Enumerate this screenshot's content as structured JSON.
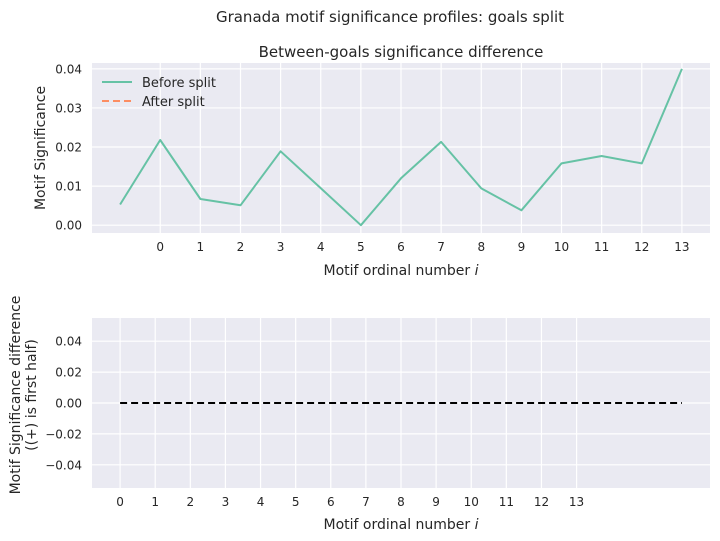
{
  "suptitle": "Granada motif significance profiles: goals split",
  "colors": {
    "background": "#eaeaf2",
    "grid": "#ffffff",
    "before": "#66c2a5",
    "after": "#fc8d62",
    "diff": "#000000",
    "text": "#262626"
  },
  "chart_data": [
    {
      "type": "line",
      "title": "Between-goals significance difference",
      "xlabel": "Motif ordinal number i",
      "ylabel": "Motif Significance",
      "xticks": [
        "0",
        "1",
        "2",
        "3",
        "4",
        "5",
        "6",
        "7",
        "8",
        "9",
        "10",
        "11",
        "12",
        "13"
      ],
      "yticks": [
        "0.00",
        "0.01",
        "0.02",
        "0.03",
        "0.04"
      ],
      "xlim": [
        -1.7,
        13.7
      ],
      "ylim": [
        -0.002,
        0.0415
      ],
      "grid": true,
      "legend_position": "upper-left",
      "series": [
        {
          "name": "Before split",
          "style": "solid",
          "x": [
            -1,
            0,
            1,
            2,
            3,
            4,
            5,
            6,
            7,
            8,
            9,
            10,
            11,
            12,
            13
          ],
          "y": [
            0.0053,
            0.0218,
            0.0067,
            0.0051,
            0.0189,
            0.0095,
            0.0,
            0.012,
            0.0213,
            0.0094,
            0.0038,
            0.0158,
            0.0177,
            0.0158,
            0.04
          ]
        },
        {
          "name": "After split",
          "style": "dashed",
          "x": [],
          "y": []
        }
      ]
    },
    {
      "type": "line",
      "title": "",
      "xlabel": "Motif ordinal number i",
      "ylabel": "Motif Significance difference\n((+) is first half)",
      "xticks": [
        "0",
        "1",
        "2",
        "3",
        "4",
        "5",
        "6",
        "7",
        "8",
        "9",
        "10",
        "11",
        "12",
        "13"
      ],
      "yticks": [
        "−0.04",
        "−0.02",
        "0.00",
        "0.02",
        "0.04"
      ],
      "xlim": [
        -0.8,
        16.8
      ],
      "ylim": [
        -0.055,
        0.055
      ],
      "grid": true,
      "series": [
        {
          "style": "dashed",
          "x": [
            0,
            16
          ],
          "y": [
            0,
            0
          ]
        }
      ]
    }
  ]
}
